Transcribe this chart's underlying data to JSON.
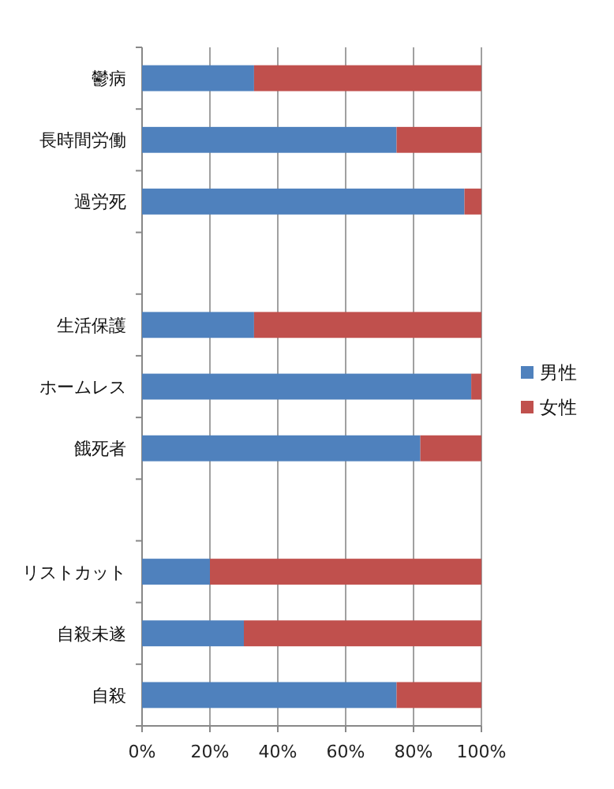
{
  "chart_data": {
    "type": "bar",
    "orientation": "horizontal",
    "stacked": true,
    "categories": [
      "鬱病",
      "長時間労働",
      "過労死",
      null,
      "生活保護",
      "ホームレス",
      "餓死者",
      null,
      "リストカット",
      "自殺未遂",
      "自殺"
    ],
    "series": [
      {
        "name": "男性",
        "color": "#4f81bd",
        "values": [
          33,
          75,
          95,
          null,
          33,
          97,
          82,
          null,
          20,
          30,
          75
        ]
      },
      {
        "name": "女性",
        "color": "#c0504d",
        "values": [
          67,
          25,
          5,
          null,
          67,
          3,
          18,
          null,
          80,
          70,
          25
        ]
      }
    ],
    "xlim": [
      0,
      100
    ],
    "xticks": [
      {
        "value": 0,
        "label": "0%"
      },
      {
        "value": 20,
        "label": "20%"
      },
      {
        "value": 40,
        "label": "40%"
      },
      {
        "value": 60,
        "label": "60%"
      },
      {
        "value": 80,
        "label": "80%"
      },
      {
        "value": 100,
        "label": "100%"
      }
    ],
    "grid": "x",
    "legend": "right"
  }
}
